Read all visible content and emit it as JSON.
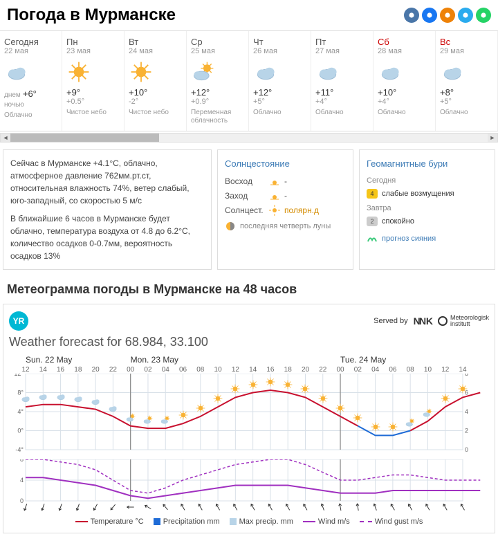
{
  "title": "Погода в Мурманске",
  "social": [
    {
      "name": "vk",
      "color": "#4a76a8"
    },
    {
      "name": "fb",
      "color": "#1877f2"
    },
    {
      "name": "ok",
      "color": "#ee8208"
    },
    {
      "name": "tg",
      "color": "#2aabee"
    },
    {
      "name": "wa",
      "color": "#25d366"
    }
  ],
  "days": [
    {
      "name": "Сегодня",
      "date": "22 мая",
      "weekend": false,
      "icon": "cloud",
      "line1_label": "днем",
      "line1_val": "+6°",
      "line2_label": "ночью",
      "line2_val": "",
      "desc": "Облачно"
    },
    {
      "name": "Пн",
      "date": "23 мая",
      "weekend": false,
      "icon": "sun",
      "line1_val": "+9°",
      "line2_val": "+0.5°",
      "desc": "Чистое небо"
    },
    {
      "name": "Вт",
      "date": "24 мая",
      "weekend": false,
      "icon": "sun",
      "line1_val": "+10°",
      "line2_val": "-2°",
      "desc": "Чистое небо"
    },
    {
      "name": "Ср",
      "date": "25 мая",
      "weekend": false,
      "icon": "suncloud",
      "line1_val": "+12°",
      "line2_val": "+0.9°",
      "desc": "Переменная облачность"
    },
    {
      "name": "Чт",
      "date": "26 мая",
      "weekend": false,
      "icon": "cloud",
      "line1_val": "+12°",
      "line2_val": "+5°",
      "desc": "Облачно"
    },
    {
      "name": "Пт",
      "date": "27 мая",
      "weekend": false,
      "icon": "cloud",
      "line1_val": "+11°",
      "line2_val": "+4°",
      "desc": "Облачно"
    },
    {
      "name": "Сб",
      "date": "28 мая",
      "weekend": true,
      "icon": "cloud",
      "line1_val": "+10°",
      "line2_val": "+4°",
      "desc": "Облачно"
    },
    {
      "name": "Вс",
      "date": "29 мая",
      "weekend": true,
      "icon": "cloud",
      "line1_val": "+8°",
      "line2_val": "+5°",
      "desc": "Облачно"
    }
  ],
  "info": {
    "p1": "Сейчас в Мурманске +4.1°С, облачно, атмосферное давление 762мм.рт.ст, относительная влажность 74%, ветер слабый, юго-западный, со скоростью 5 м/с",
    "p2": "В ближайшие 6 часов в Мурманске будет облачно, температура воздуха от 4.8 до 6.2°С, количество осадков 0-0.7мм, вероятность осадков 13%"
  },
  "sun": {
    "title": "Солнцестояние",
    "sunrise_label": "Восход",
    "sunrise_val": "-",
    "sunset_label": "Заход",
    "sunset_val": "-",
    "solstice_label": "Солнцест.",
    "solstice_val": "полярн.д",
    "moon": "последняя четверть луны"
  },
  "geo": {
    "title": "Геомагнитные бури",
    "today_label": "Сегодня",
    "today_badge": "4",
    "today_badge_color": "#f5c518",
    "today_text": "слабые возмущения",
    "tomorrow_label": "Завтра",
    "tomorrow_badge": "2",
    "tomorrow_badge_color": "#ccc",
    "tomorrow_text": "спокойно",
    "aurora_link": "прогноз сияния"
  },
  "meteo": {
    "title": "Метеограмма погоды в Мурманске на 48 часов",
    "served_by": "Served by",
    "subtitle": "Weather forecast for 68.984, 33.100",
    "chart_days": [
      {
        "label": "Sun. 22 May",
        "span": 6
      },
      {
        "label": "Mon. 23 May",
        "span": 12
      },
      {
        "label": "Tue. 24 May",
        "span": 8
      }
    ],
    "hours": [
      "12",
      "14",
      "16",
      "18",
      "20",
      "22",
      "00",
      "02",
      "04",
      "06",
      "08",
      "10",
      "12",
      "14",
      "16",
      "18",
      "20",
      "22",
      "00",
      "02",
      "04",
      "06",
      "08",
      "10",
      "12",
      "14"
    ],
    "temp_chart": {
      "ylim": [
        -4,
        12
      ],
      "ytick_step": 4,
      "ylim_right": [
        0,
        8
      ],
      "ytick_right_step": 2,
      "grid_color": "#d8e0e8",
      "temp_color": "#c8102e",
      "precip_color": "#1e6bd6",
      "temp_values": [
        5,
        5.5,
        5.5,
        5,
        4.5,
        3,
        1,
        0.5,
        0.5,
        1.5,
        3,
        5,
        7,
        8,
        8.5,
        8,
        7,
        5,
        3,
        1,
        -1,
        -1,
        0,
        2,
        5,
        7,
        8
      ],
      "precip_segment": {
        "start_idx": 19,
        "end_idx": 22,
        "values": [
          1,
          -1,
          -1,
          0
        ]
      },
      "icons": [
        "cloud",
        "cloud",
        "cloud",
        "cloud",
        "cloud",
        "cloud",
        "suncloud",
        "suncloud",
        "suncloud",
        "sun",
        "sun",
        "sun",
        "sun",
        "sun",
        "sun",
        "sun",
        "sun",
        "sun",
        "sun",
        "sun",
        "sun",
        "sun",
        "suncloud",
        "suncloud",
        "sun",
        "sun"
      ]
    },
    "wind_chart": {
      "ylim": [
        0,
        8
      ],
      "ytick_step": 4,
      "wind_color": "#a030c0",
      "gust_color": "#a030c0",
      "wind_values": [
        4.5,
        4.5,
        4,
        3.5,
        3,
        2,
        1,
        0.5,
        1,
        1.5,
        2,
        2.5,
        3,
        3,
        3,
        3,
        2.5,
        2,
        1.5,
        1.5,
        1.5,
        2,
        2,
        2,
        2,
        2,
        2
      ],
      "gust_values": [
        8,
        8,
        7.5,
        7,
        6,
        4,
        2,
        1.5,
        2.5,
        4,
        5,
        6,
        7,
        7.5,
        8,
        8,
        7,
        5.5,
        4,
        4,
        4.5,
        5,
        5,
        4.5,
        4,
        4,
        4
      ],
      "arrows": [
        200,
        200,
        200,
        200,
        210,
        220,
        270,
        300,
        320,
        330,
        330,
        330,
        330,
        330,
        330,
        330,
        330,
        340,
        350,
        350,
        340,
        330,
        330,
        330,
        330,
        330
      ]
    },
    "legend": [
      {
        "type": "line",
        "color": "#c8102e",
        "label": "Temperature °C"
      },
      {
        "type": "box",
        "color": "#1e6bd6",
        "label": "Precipitation mm"
      },
      {
        "type": "box",
        "color": "#b8d4e8",
        "label": "Max precip. mm"
      },
      {
        "type": "line",
        "color": "#a030c0",
        "label": "Wind m/s"
      },
      {
        "type": "dash",
        "color": "#a030c0",
        "label": "Wind gust m/s"
      }
    ]
  }
}
